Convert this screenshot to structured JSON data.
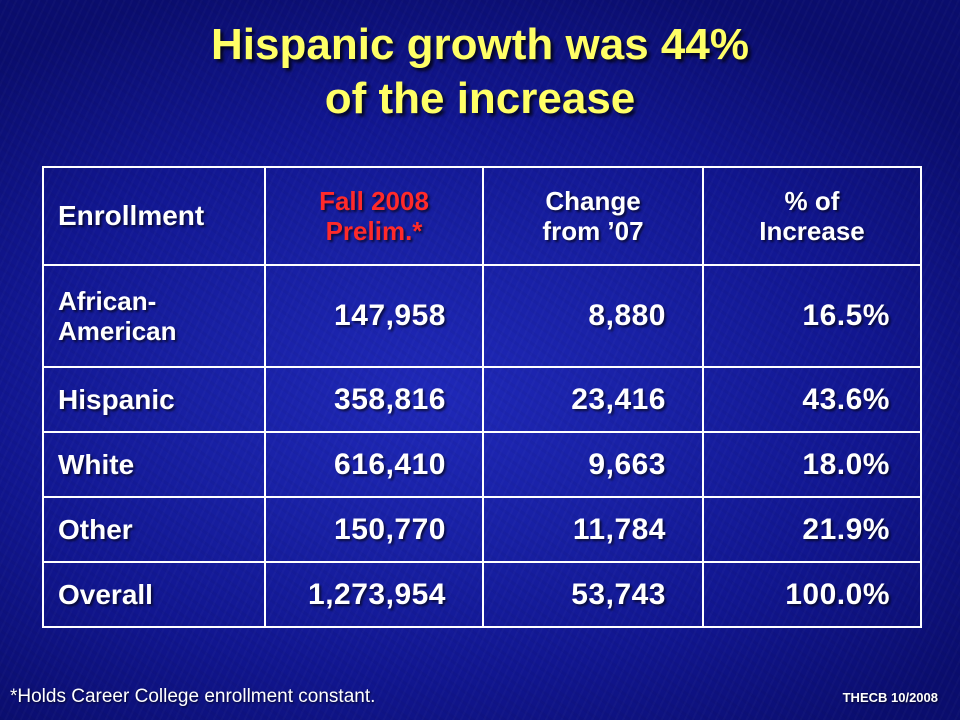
{
  "title": {
    "line1": "Hispanic growth was 44%",
    "line2": "of the increase"
  },
  "colors": {
    "title": "#ffff66",
    "accent_header": "#ff2a2a",
    "text": "#ffffff",
    "background": "#1820a4"
  },
  "table": {
    "headers": [
      {
        "line1": "Enrollment",
        "line2": ""
      },
      {
        "line1": "Fall 2008",
        "line2": "Prelim.*"
      },
      {
        "line1": "Change",
        "line2": "from ’07"
      },
      {
        "line1": "% of",
        "line2": "Increase"
      }
    ],
    "rows": [
      {
        "label_line1": "African-",
        "label_line2": "American",
        "fall2008": "147,958",
        "change": "8,880",
        "pct": "16.5%"
      },
      {
        "label_line1": "Hispanic",
        "label_line2": "",
        "fall2008": "358,816",
        "change": "23,416",
        "pct": "43.6%"
      },
      {
        "label_line1": "White",
        "label_line2": "",
        "fall2008": "616,410",
        "change": "9,663",
        "pct": "18.0%"
      },
      {
        "label_line1": "Other",
        "label_line2": "",
        "fall2008": "150,770",
        "change": "11,784",
        "pct": "21.9%"
      },
      {
        "label_line1": "Overall",
        "label_line2": "",
        "fall2008": "1,273,954",
        "change": "53,743",
        "pct": "100.0%"
      }
    ]
  },
  "footnote": "*Holds Career College enrollment constant.",
  "credit": "THECB 10/2008"
}
